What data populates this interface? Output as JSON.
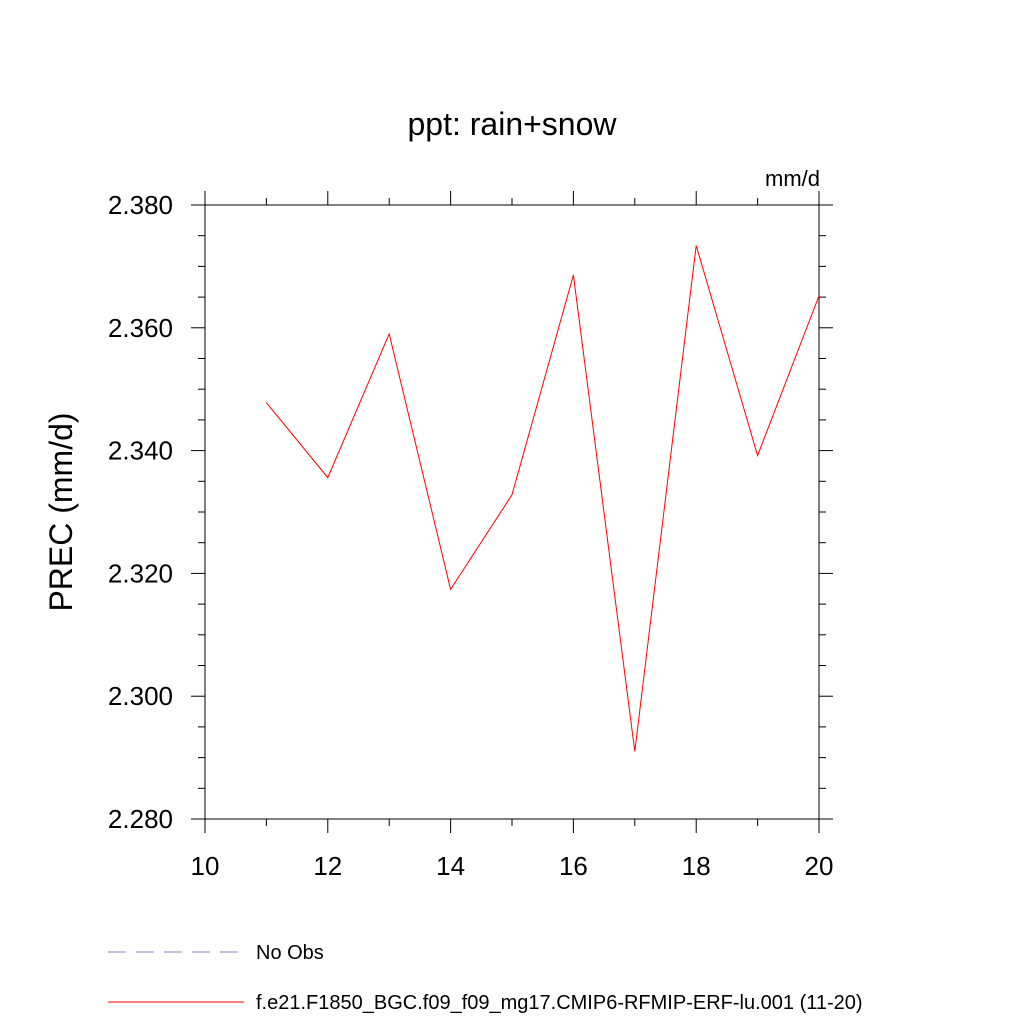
{
  "chart_data": {
    "type": "line",
    "title": "ppt: rain+snow",
    "units_label": "mm/d",
    "ylabel": "PREC  (mm/d)",
    "xlabel": "",
    "xlim": [
      10,
      20
    ],
    "ylim": [
      2.28,
      2.38
    ],
    "x_ticks": [
      10,
      12,
      14,
      16,
      18,
      20
    ],
    "y_ticks": [
      2.28,
      2.3,
      2.32,
      2.34,
      2.36,
      2.38
    ],
    "x_tick_labels": [
      "10",
      "12",
      "14",
      "16",
      "18",
      "20"
    ],
    "y_tick_labels": [
      "2.280",
      "2.300",
      "2.320",
      "2.340",
      "2.360",
      "2.380"
    ],
    "grid": false,
    "legend_placement": "bottom",
    "series": [
      {
        "name": "No Obs",
        "color": "#8080c0",
        "style": "dashed",
        "x": [],
        "y": []
      },
      {
        "name": "f.e21.F1850_BGC.f09_f09_mg17.CMIP6-RFMIP-ERF-lu.001 (11-20)",
        "color": "#ff0000",
        "style": "solid",
        "x": [
          11,
          12,
          13,
          14,
          15,
          16,
          17,
          18,
          19,
          20
        ],
        "y": [
          2.3478,
          2.3356,
          2.359,
          2.3174,
          2.3328,
          2.3686,
          2.291,
          2.3734,
          2.3392,
          2.3652
        ]
      }
    ]
  }
}
